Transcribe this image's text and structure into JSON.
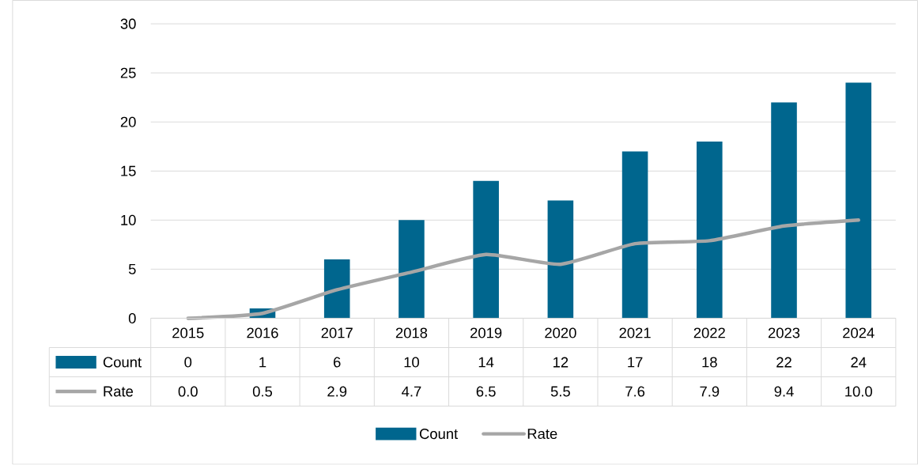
{
  "chart_data": {
    "type": "bar",
    "categories": [
      "2015",
      "2016",
      "2017",
      "2018",
      "2019",
      "2020",
      "2021",
      "2022",
      "2023",
      "2024"
    ],
    "series": [
      {
        "name": "Count",
        "color": "#00668e",
        "values": [
          0,
          1,
          6,
          10,
          14,
          12,
          17,
          18,
          22,
          24
        ],
        "value_labels": [
          "0",
          "1",
          "6",
          "10",
          "14",
          "12",
          "17",
          "18",
          "22",
          "24"
        ]
      },
      {
        "name": "Rate",
        "type": "line",
        "color": "#a6a6a6",
        "values": [
          0.0,
          0.5,
          2.9,
          4.7,
          6.5,
          5.5,
          7.6,
          7.9,
          9.4,
          10.0
        ],
        "value_labels": [
          "0.0",
          "0.5",
          "2.9",
          "4.7",
          "6.5",
          "5.5",
          "7.6",
          "7.9",
          "9.4",
          "10.0"
        ]
      }
    ],
    "ylim": [
      0,
      30
    ],
    "yticks": [
      0,
      5,
      10,
      15,
      20,
      25,
      30
    ],
    "grid": "y",
    "legend": "bottom"
  }
}
